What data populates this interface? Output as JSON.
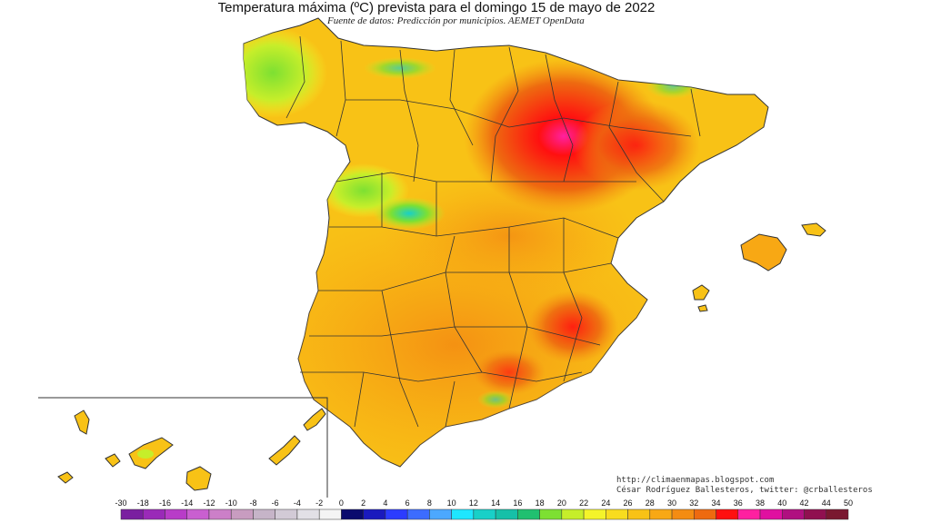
{
  "title": "Temperatura máxima (ºC) prevista para el domingo 15 de mayo de 2022",
  "subtitle": "Fuente de datos: Predicción por municipios. AEMET OpenData",
  "credits": {
    "url": "http://climaenmapas.blogspot.com",
    "author": "César Rodríguez Ballesteros, twitter: @crballesteros"
  },
  "legend": {
    "ticks": [
      "-30",
      "-18",
      "-16",
      "-14",
      "-12",
      "-10",
      "-8",
      "-6",
      "-4",
      "-2",
      "0",
      "2",
      "4",
      "6",
      "8",
      "10",
      "12",
      "14",
      "16",
      "18",
      "20",
      "22",
      "24",
      "26",
      "28",
      "30",
      "32",
      "34",
      "36",
      "38",
      "40",
      "42",
      "44",
      "50"
    ],
    "colors": [
      "#7a1fa0",
      "#9a2ab8",
      "#b83cc8",
      "#c95fd0",
      "#cc7fc8",
      "#c89cc0",
      "#c6b4c8",
      "#d2cad6",
      "#e2e0e6",
      "#f4f4f4",
      "#0a0a6e",
      "#1a1abe",
      "#2c3cff",
      "#3c6cff",
      "#4ca8ff",
      "#1ee6ff",
      "#18d0c8",
      "#16c0a8",
      "#20c070",
      "#7de032",
      "#c6ee2a",
      "#f4f42a",
      "#f8dc1e",
      "#f8c216",
      "#f8a814",
      "#f48c12",
      "#ee6a10",
      "#ff1010",
      "#ff20a0",
      "#e010a0",
      "#b01080",
      "#901050",
      "#7a1830"
    ]
  },
  "map_features": {
    "regions": [
      "peninsula",
      "balearic-islands",
      "canary-islands"
    ],
    "hotspot_labels": []
  }
}
